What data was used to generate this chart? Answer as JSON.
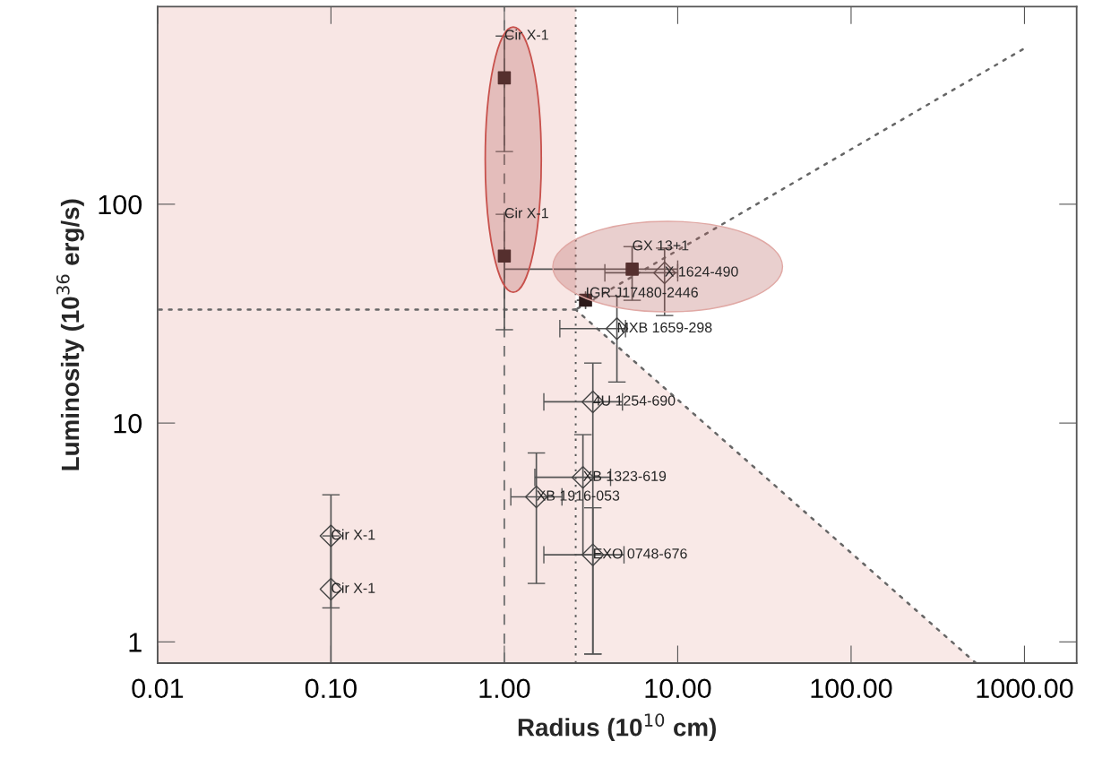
{
  "chart_data": {
    "type": "scatter",
    "xlabel": "Radius (10$^{10}$ cm)",
    "ylabel": "Luminosity (10$^{36}$ erg/s)",
    "log": "xy",
    "xlim": [
      0.01,
      2000
    ],
    "ylim": [
      0.8,
      800
    ],
    "xticks": [
      {
        "value": 0.01,
        "label": "0.01"
      },
      {
        "value": 0.1,
        "label": "0.10"
      },
      {
        "value": 1,
        "label": "1.00"
      },
      {
        "value": 10,
        "label": "10.00"
      },
      {
        "value": 100,
        "label": "100.00"
      },
      {
        "value": 1000,
        "label": "1000.00"
      }
    ],
    "yticks": [
      1,
      10,
      100
    ],
    "grid": false,
    "series": [
      {
        "type": "line",
        "color": "#666666",
        "line_style": "dotted",
        "marker": "none",
        "x": [
          0.01,
          2.58
        ],
        "values": [
          33,
          33
        ]
      },
      {
        "type": "line",
        "color": "#666666",
        "line_style": "dotted",
        "marker": "none",
        "x": [
          2.58,
          977
        ],
        "values": [
          33,
          510
        ]
      },
      {
        "type": "area",
        "color": "#f9e9e7",
        "line_style": "dotted",
        "x": [
          2.58,
          525
        ],
        "values": [
          33,
          0.8
        ]
      },
      {
        "color": "#2b1a1a",
        "marker": "square",
        "x": [
          1.0,
          1.0,
          5.46,
          2.94
        ],
        "values": [
          378,
          58,
          50.5,
          36.4
        ],
        "errors": [
          [
            174,
            587
          ],
          [
            26.7,
            90
          ],
          [
            36.4,
            64
          ],
          null
        ],
        "xerrors": [
          null,
          null,
          [
            1.0,
            10
          ],
          null
        ]
      },
      {
        "color": "#444444",
        "marker": "diamond",
        "x": [
          8.4,
          4.46,
          3.24,
          2.84,
          1.53,
          3.24,
          0.1,
          0.1
        ],
        "values": [
          48.6,
          27,
          12.5,
          5.65,
          4.6,
          2.5,
          3.05,
          1.74
        ],
        "errors": [
          [
            31,
            63
          ],
          [
            15.4,
            38
          ],
          [
            0.88,
            18.8
          ],
          [
            2.5,
            8.85
          ],
          [
            1.85,
            7.3
          ],
          [
            0.88,
            4.1
          ],
          [
            1.43,
            4.7
          ],
          [
            0.8,
            3.05
          ]
        ],
        "xerrors": [
          [
            3.8,
            10
          ],
          [
            2.09,
            5.0
          ],
          [
            1.69,
            4.8
          ],
          [
            1.5,
            4.1
          ],
          [
            1.09,
            2.15
          ],
          [
            1.69,
            4.9
          ],
          null,
          null
        ]
      }
    ],
    "bands": [
      {
        "axis": "x",
        "from": 0.01,
        "to": 2.58,
        "color": "#f8e6e4"
      }
    ],
    "ref_lines": [
      {
        "axis": "x",
        "value": 1.0,
        "line_style": "dashed",
        "color": "#777777"
      },
      {
        "axis": "x",
        "value": 2.58,
        "line_style": "dotted",
        "color": "#555555"
      }
    ],
    "annotations": [
      {
        "text": "Cir X-1",
        "x": 1.0,
        "y": 378
      },
      {
        "text": "Cir X-1",
        "x": 1.0,
        "y": 58
      },
      {
        "text": "GX 13+1",
        "x": 5.46,
        "y": 50.5
      },
      {
        "text": "X 1624-490",
        "x": 8.4,
        "y": 48.6
      },
      {
        "text": "IGR J17480-2446",
        "x": 2.94,
        "y": 36.4
      },
      {
        "text": "MXB 1659-298",
        "x": 4.46,
        "y": 27
      },
      {
        "text": "4U 1254-690",
        "x": 3.24,
        "y": 12.5
      },
      {
        "text": "XB 1323-619",
        "x": 2.84,
        "y": 5.65
      },
      {
        "text": "XB 1916-053",
        "x": 1.53,
        "y": 4.6
      },
      {
        "text": "EXO 0748-676",
        "x": 3.24,
        "y": 2.5
      },
      {
        "text": "Cir X-1",
        "x": 0.1,
        "y": 3.05
      },
      {
        "text": "Cir X-1",
        "x": 0.1,
        "y": 1.74
      }
    ]
  }
}
